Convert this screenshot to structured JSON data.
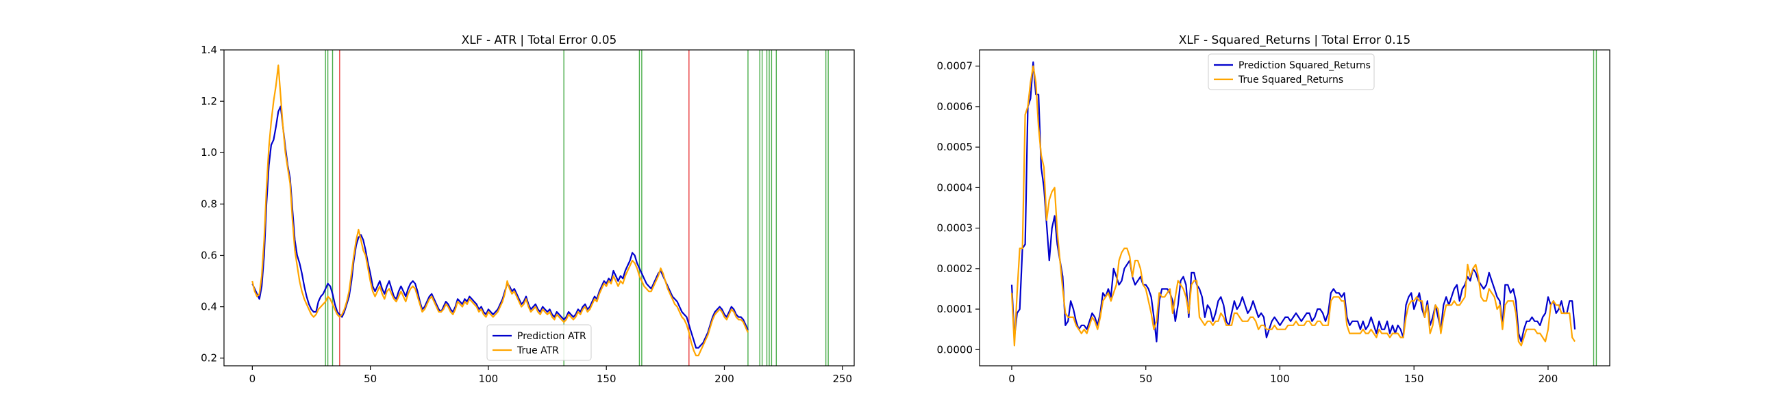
{
  "chart_data": [
    {
      "type": "line",
      "title": "XLF - ATR | Total Error 0.05",
      "xlabel": "",
      "ylabel": "",
      "xlim": [
        -12,
        255
      ],
      "ylim": [
        0.17,
        1.4
      ],
      "x_ticks": [
        0,
        50,
        100,
        150,
        200,
        250
      ],
      "y_ticks": [
        0.2,
        0.4,
        0.6,
        0.8,
        1.0,
        1.2,
        1.4
      ],
      "x_tick_labels": [
        "0",
        "50",
        "100",
        "150",
        "200",
        "250"
      ],
      "y_tick_labels": [
        "0.2",
        "0.4",
        "0.6",
        "0.8",
        "1.0",
        "1.2",
        "1.4"
      ],
      "grid": false,
      "legend_position": "lower-center",
      "vertical_lines": {
        "green": [
          31,
          32,
          34,
          132,
          164,
          165,
          210,
          215,
          216,
          218,
          219,
          220,
          222,
          243,
          244
        ],
        "red": [
          37,
          185
        ]
      },
      "series": [
        {
          "name": "Prediction ATR",
          "color": "#0000cc",
          "x_start": 0,
          "values": [
            0.49,
            0.47,
            0.45,
            0.43,
            0.48,
            0.6,
            0.8,
            0.95,
            1.03,
            1.05,
            1.1,
            1.16,
            1.18,
            1.1,
            1.02,
            0.95,
            0.9,
            0.78,
            0.66,
            0.6,
            0.57,
            0.53,
            0.48,
            0.44,
            0.41,
            0.39,
            0.38,
            0.38,
            0.42,
            0.44,
            0.45,
            0.47,
            0.49,
            0.48,
            0.45,
            0.41,
            0.38,
            0.37,
            0.36,
            0.38,
            0.41,
            0.44,
            0.5,
            0.58,
            0.64,
            0.67,
            0.68,
            0.66,
            0.62,
            0.57,
            0.53,
            0.48,
            0.46,
            0.48,
            0.5,
            0.47,
            0.45,
            0.48,
            0.5,
            0.47,
            0.44,
            0.43,
            0.46,
            0.48,
            0.46,
            0.44,
            0.47,
            0.49,
            0.5,
            0.49,
            0.46,
            0.42,
            0.39,
            0.4,
            0.42,
            0.44,
            0.45,
            0.43,
            0.41,
            0.39,
            0.38,
            0.4,
            0.42,
            0.41,
            0.39,
            0.38,
            0.4,
            0.43,
            0.42,
            0.41,
            0.43,
            0.42,
            0.44,
            0.43,
            0.42,
            0.41,
            0.39,
            0.4,
            0.38,
            0.37,
            0.39,
            0.38,
            0.37,
            0.38,
            0.39,
            0.41,
            0.43,
            0.46,
            0.49,
            0.48,
            0.46,
            0.47,
            0.45,
            0.43,
            0.41,
            0.42,
            0.44,
            0.41,
            0.39,
            0.4,
            0.41,
            0.39,
            0.38,
            0.4,
            0.39,
            0.38,
            0.39,
            0.37,
            0.36,
            0.38,
            0.37,
            0.36,
            0.35,
            0.36,
            0.38,
            0.37,
            0.36,
            0.37,
            0.39,
            0.38,
            0.4,
            0.41,
            0.39,
            0.4,
            0.42,
            0.44,
            0.43,
            0.46,
            0.48,
            0.5,
            0.49,
            0.51,
            0.5,
            0.54,
            0.52,
            0.5,
            0.52,
            0.51,
            0.54,
            0.56,
            0.58,
            0.61,
            0.6,
            0.57,
            0.55,
            0.53,
            0.51,
            0.49,
            0.48,
            0.47,
            0.49,
            0.51,
            0.53,
            0.54,
            0.52,
            0.5,
            0.48,
            0.46,
            0.44,
            0.43,
            0.42,
            0.4,
            0.38,
            0.37,
            0.36,
            0.33,
            0.3,
            0.27,
            0.24,
            0.24,
            0.25,
            0.26,
            0.28,
            0.3,
            0.33,
            0.36,
            0.38,
            0.39,
            0.4,
            0.39,
            0.37,
            0.36,
            0.38,
            0.4,
            0.39,
            0.37,
            0.36,
            0.36,
            0.35,
            0.33,
            0.31
          ]
        },
        {
          "name": "True ATR",
          "color": "#ffa500",
          "x_start": 0,
          "values": [
            0.5,
            0.46,
            0.44,
            0.45,
            0.52,
            0.66,
            0.86,
            1.02,
            1.12,
            1.2,
            1.26,
            1.34,
            1.22,
            1.1,
            1.0,
            0.94,
            0.88,
            0.74,
            0.62,
            0.56,
            0.5,
            0.46,
            0.43,
            0.41,
            0.39,
            0.37,
            0.36,
            0.37,
            0.39,
            0.4,
            0.41,
            0.42,
            0.44,
            0.43,
            0.41,
            0.39,
            0.37,
            0.36,
            0.37,
            0.39,
            0.42,
            0.46,
            0.53,
            0.6,
            0.66,
            0.7,
            0.66,
            0.62,
            0.6,
            0.55,
            0.5,
            0.46,
            0.44,
            0.46,
            0.48,
            0.45,
            0.43,
            0.46,
            0.47,
            0.45,
            0.43,
            0.42,
            0.44,
            0.46,
            0.44,
            0.42,
            0.45,
            0.47,
            0.48,
            0.47,
            0.44,
            0.41,
            0.38,
            0.39,
            0.41,
            0.43,
            0.44,
            0.42,
            0.4,
            0.38,
            0.38,
            0.39,
            0.41,
            0.4,
            0.38,
            0.37,
            0.39,
            0.42,
            0.41,
            0.4,
            0.42,
            0.41,
            0.43,
            0.42,
            0.41,
            0.4,
            0.38,
            0.39,
            0.37,
            0.36,
            0.38,
            0.37,
            0.36,
            0.37,
            0.38,
            0.4,
            0.42,
            0.45,
            0.5,
            0.47,
            0.45,
            0.46,
            0.44,
            0.42,
            0.4,
            0.41,
            0.43,
            0.4,
            0.38,
            0.39,
            0.4,
            0.38,
            0.37,
            0.39,
            0.38,
            0.37,
            0.38,
            0.36,
            0.35,
            0.37,
            0.36,
            0.35,
            0.34,
            0.35,
            0.37,
            0.36,
            0.35,
            0.36,
            0.38,
            0.37,
            0.39,
            0.4,
            0.38,
            0.39,
            0.41,
            0.43,
            0.42,
            0.45,
            0.47,
            0.49,
            0.48,
            0.5,
            0.49,
            0.52,
            0.5,
            0.48,
            0.5,
            0.49,
            0.52,
            0.54,
            0.56,
            0.58,
            0.57,
            0.55,
            0.52,
            0.5,
            0.48,
            0.47,
            0.46,
            0.46,
            0.48,
            0.5,
            0.52,
            0.55,
            0.53,
            0.5,
            0.47,
            0.45,
            0.43,
            0.41,
            0.4,
            0.38,
            0.36,
            0.35,
            0.33,
            0.3,
            0.26,
            0.23,
            0.21,
            0.21,
            0.23,
            0.25,
            0.27,
            0.29,
            0.32,
            0.35,
            0.37,
            0.38,
            0.39,
            0.38,
            0.36,
            0.35,
            0.37,
            0.39,
            0.38,
            0.36,
            0.35,
            0.35,
            0.34,
            0.32,
            0.3
          ]
        }
      ]
    },
    {
      "type": "line",
      "title": "XLF - Squared_Returns | Total Error 0.15",
      "xlabel": "",
      "ylabel": "",
      "xlim": [
        -12,
        223
      ],
      "ylim": [
        -4e-05,
        0.00074
      ],
      "x_ticks": [
        0,
        50,
        100,
        150,
        200
      ],
      "y_ticks": [
        0.0,
        0.0001,
        0.0002,
        0.0003,
        0.0004,
        0.0005,
        0.0006,
        0.0007
      ],
      "x_tick_labels": [
        "0",
        "50",
        "100",
        "150",
        "200"
      ],
      "y_tick_labels": [
        "0.0000",
        "0.0001",
        "0.0002",
        "0.0003",
        "0.0004",
        "0.0005",
        "0.0006",
        "0.0007"
      ],
      "grid": false,
      "legend_position": "upper-center",
      "vertical_lines": {
        "green": [
          217,
          218
        ],
        "red": []
      },
      "series": [
        {
          "name": "Prediction Squared_Returns",
          "color": "#0000cc",
          "x_start": 0,
          "values": [
            0.00016,
            3e-05,
            9e-05,
            0.0001,
            0.00025,
            0.00026,
            0.0006,
            0.00062,
            0.00071,
            0.00063,
            0.00063,
            0.00045,
            0.0004,
            0.00031,
            0.00022,
            0.0003,
            0.00033,
            0.00026,
            0.00022,
            0.00018,
            6e-05,
            7e-05,
            0.00012,
            0.0001,
            7e-05,
            5e-05,
            6e-05,
            6e-05,
            5e-05,
            7e-05,
            9e-05,
            8e-05,
            6e-05,
            9e-05,
            0.00014,
            0.00013,
            0.00015,
            0.00013,
            0.0002,
            0.00018,
            0.00016,
            0.00017,
            0.0002,
            0.00021,
            0.00022,
            0.00018,
            0.00016,
            0.00017,
            0.00018,
            0.00016,
            0.00016,
            0.00015,
            0.00013,
            8e-05,
            2e-05,
            0.00012,
            0.00015,
            0.00015,
            0.00015,
            0.00014,
            0.00012,
            7e-05,
            0.00011,
            0.00017,
            0.00018,
            0.00016,
            8e-05,
            0.00019,
            0.00019,
            0.00016,
            0.00015,
            0.00013,
            8e-05,
            0.00011,
            0.0001,
            7e-05,
            9e-05,
            0.00012,
            0.00013,
            0.00011,
            7e-05,
            6e-05,
            9e-05,
            0.00012,
            0.0001,
            0.00011,
            0.00013,
            0.00011,
            9e-05,
            0.0001,
            0.00012,
            0.0001,
            8e-05,
            9e-05,
            8e-05,
            3e-05,
            5e-05,
            7e-05,
            8e-05,
            7e-05,
            6e-05,
            7e-05,
            8e-05,
            8e-05,
            7e-05,
            8e-05,
            9e-05,
            8e-05,
            7e-05,
            8e-05,
            9e-05,
            9e-05,
            7e-05,
            8e-05,
            0.0001,
            0.0001,
            9e-05,
            7e-05,
            9e-05,
            0.00014,
            0.00015,
            0.00014,
            0.00014,
            0.00013,
            0.00014,
            8e-05,
            6e-05,
            7e-05,
            7e-05,
            7e-05,
            5e-05,
            7e-05,
            5e-05,
            6e-05,
            8e-05,
            6e-05,
            4e-05,
            7e-05,
            5e-05,
            5e-05,
            7e-05,
            4e-05,
            6e-05,
            4e-05,
            6e-05,
            5e-05,
            3e-05,
            0.00011,
            0.00013,
            0.00014,
            0.0001,
            0.00012,
            0.00014,
            0.0001,
            8e-05,
            0.00012,
            6e-05,
            8e-05,
            0.00011,
            8e-05,
            5e-05,
            0.00011,
            0.00013,
            0.00011,
            0.00013,
            0.00015,
            0.00016,
            0.00012,
            0.00015,
            0.00016,
            0.00018,
            0.00017,
            0.0002,
            0.00019,
            0.00017,
            0.00016,
            0.00015,
            0.00016,
            0.00019,
            0.00017,
            0.00015,
            0.00013,
            0.00012,
            6e-05,
            0.00016,
            0.00016,
            0.00014,
            0.00015,
            0.00012,
            4e-05,
            2e-05,
            5e-05,
            7e-05,
            7e-05,
            8e-05,
            7e-05,
            7e-05,
            6e-05,
            8e-05,
            9e-05,
            0.00013,
            0.00011,
            0.00012,
            9e-05,
            0.0001,
            0.00012,
            9e-05,
            9e-05,
            0.00012,
            0.00012,
            5e-05
          ]
        },
        {
          "name": "True Squared_Returns",
          "color": "#ffa500",
          "x_start": 0,
          "values": [
            0.00014,
            1e-05,
            0.00014,
            0.00025,
            0.00025,
            0.00058,
            0.0006,
            0.00066,
            0.0007,
            0.00066,
            0.00055,
            0.00048,
            0.00045,
            0.00032,
            0.00037,
            0.00039,
            0.0004,
            0.00029,
            0.00022,
            0.00015,
            9e-05,
            8e-05,
            8e-05,
            8e-05,
            6e-05,
            5e-05,
            4e-05,
            5e-05,
            4e-05,
            6e-05,
            8e-05,
            7e-05,
            5e-05,
            8e-05,
            0.00012,
            0.00013,
            0.00014,
            0.00012,
            0.00014,
            0.00016,
            0.00022,
            0.00024,
            0.00025,
            0.00025,
            0.00023,
            0.00018,
            0.00022,
            0.00022,
            0.0002,
            0.00016,
            0.00015,
            0.00012,
            9e-05,
            5e-05,
            7e-05,
            0.00014,
            0.00013,
            0.00013,
            0.00014,
            0.00015,
            9e-05,
            0.00013,
            0.00017,
            0.00016,
            0.00015,
            0.00013,
            9e-05,
            0.00016,
            0.00017,
            0.00017,
            8e-05,
            7e-05,
            6e-05,
            7e-05,
            7e-05,
            6e-05,
            7e-05,
            7e-05,
            9e-05,
            8e-05,
            6e-05,
            6e-05,
            6e-05,
            9e-05,
            9e-05,
            8e-05,
            7e-05,
            7e-05,
            7e-05,
            8e-05,
            8e-05,
            7e-05,
            5e-05,
            6e-05,
            6e-05,
            5e-05,
            5e-05,
            5e-05,
            6e-05,
            5e-05,
            5e-05,
            5e-05,
            5e-05,
            6e-05,
            6e-05,
            6e-05,
            7e-05,
            6e-05,
            6e-05,
            6e-05,
            7e-05,
            7e-05,
            6e-05,
            6e-05,
            7e-05,
            7e-05,
            6e-05,
            6e-05,
            6e-05,
            0.00012,
            0.00013,
            0.00013,
            0.00013,
            0.00012,
            0.00012,
            6e-05,
            4e-05,
            4e-05,
            4e-05,
            4e-05,
            4e-05,
            5e-05,
            4e-05,
            4e-05,
            5e-05,
            4e-05,
            3e-05,
            5e-05,
            4e-05,
            4e-05,
            4e-05,
            3e-05,
            4e-05,
            4e-05,
            4e-05,
            3e-05,
            3e-05,
            8e-05,
            0.00011,
            0.00012,
            0.00012,
            0.00013,
            0.00012,
            0.00012,
            8e-05,
            0.00011,
            4e-05,
            6e-05,
            0.00011,
            0.0001,
            4e-05,
            8e-05,
            0.00011,
            0.00011,
            0.00011,
            0.00012,
            0.00011,
            0.00011,
            0.00012,
            0.00013,
            0.00021,
            0.00018,
            0.0002,
            0.00021,
            0.00018,
            0.00013,
            0.00012,
            0.00012,
            0.00015,
            0.00014,
            0.00013,
            0.0001,
            0.00011,
            5e-05,
            0.00011,
            0.00012,
            0.00012,
            0.00012,
            9e-05,
            2e-05,
            1e-05,
            3e-05,
            5e-05,
            5e-05,
            5e-05,
            5e-05,
            4e-05,
            4e-05,
            3e-05,
            2e-05,
            5e-05,
            0.00011,
            0.00012,
            0.00011,
            0.00011,
            9e-05,
            9e-05,
            9e-05,
            9e-05,
            3e-05,
            2e-05
          ]
        }
      ]
    }
  ]
}
